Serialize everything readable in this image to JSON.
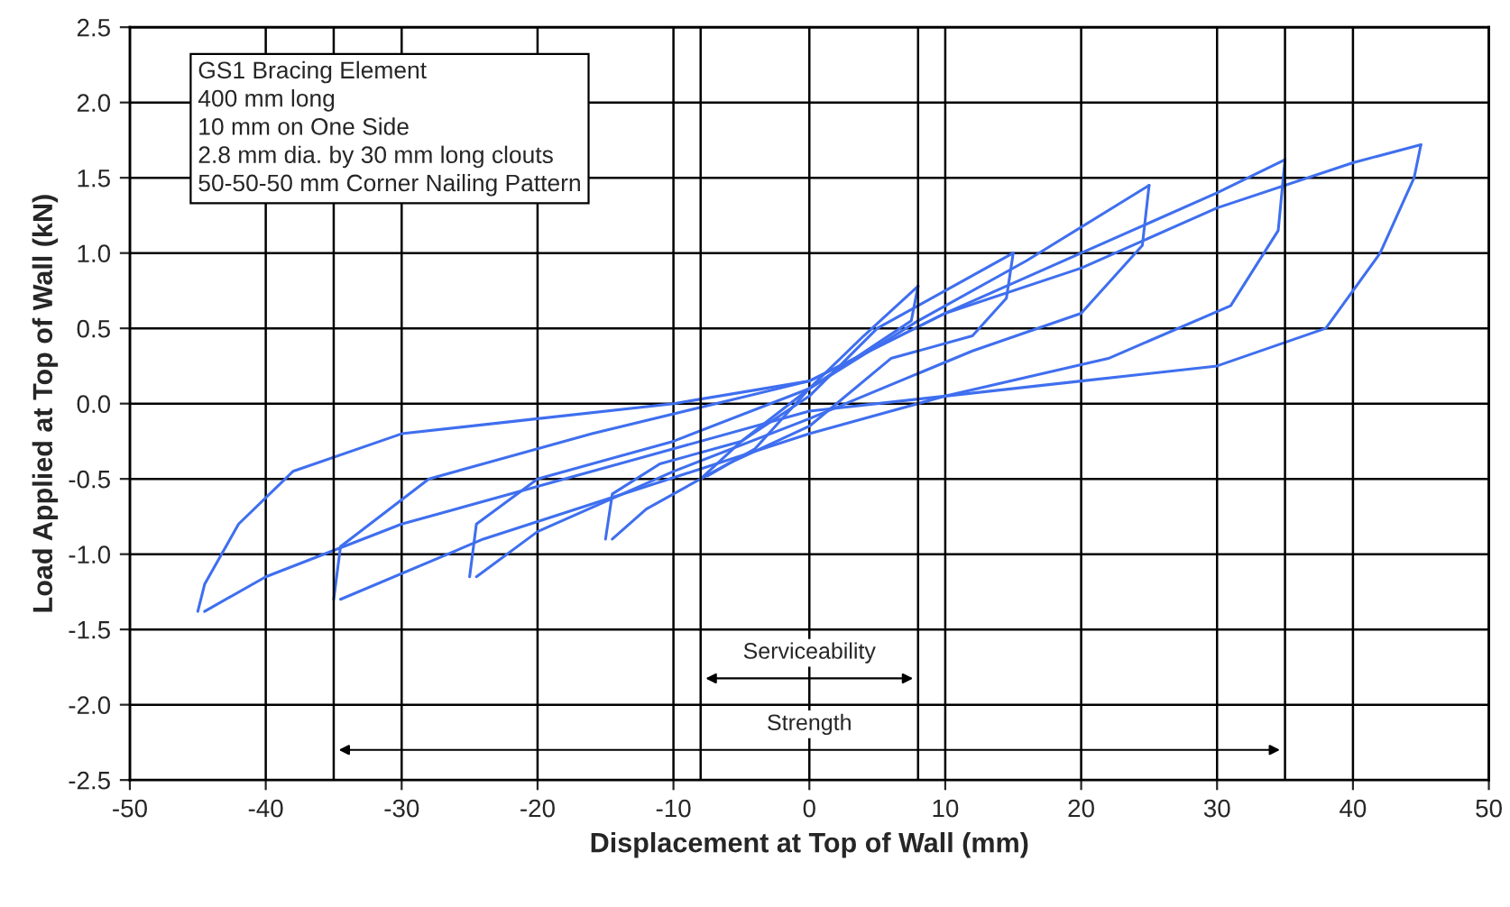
{
  "chart_data": {
    "type": "line",
    "xlabel": "Displacement at Top of Wall (mm)",
    "ylabel": "Load Applied at Top of Wall (kN)",
    "xlim": [
      -50,
      50
    ],
    "xticks": [
      -50,
      -40,
      -30,
      -20,
      -10,
      0,
      10,
      20,
      30,
      40,
      50
    ],
    "ylim": [
      -2.5,
      2.5
    ],
    "yticks": [
      -2.5,
      {
        "value": -2,
        "label": "-2.0"
      },
      -1.5,
      {
        "value": -1,
        "label": "-1.0"
      },
      -0.5,
      {
        "value": 0,
        "label": "0.0"
      },
      0.5,
      {
        "value": 1,
        "label": "1.0"
      },
      1.5,
      {
        "value": 2,
        "label": "2.0"
      },
      2.5
    ],
    "grid": true,
    "line_style": "solid",
    "series": [
      {
        "color": "#3f6fef",
        "x": [
          -8,
          -5,
          0,
          4,
          8
        ],
        "values": [
          -0.5,
          -0.25,
          0.1,
          0.45,
          0.78
        ]
      },
      {
        "color": "#3f6fef",
        "x": [
          8,
          7.5,
          5,
          0,
          -4,
          -7.5
        ],
        "values": [
          0.78,
          0.55,
          0.4,
          0.1,
          -0.3,
          -0.48
        ]
      },
      {
        "color": "#3f6fef",
        "x": [
          -15,
          -14.5,
          -11,
          -5,
          0,
          5,
          10,
          15
        ],
        "values": [
          -0.9,
          -0.6,
          -0.4,
          -0.25,
          0.05,
          0.5,
          0.75,
          1.0
        ]
      },
      {
        "color": "#3f6fef",
        "x": [
          15,
          14.5,
          12,
          6,
          0,
          -6,
          -12,
          -14.5
        ],
        "values": [
          1.0,
          0.7,
          0.45,
          0.3,
          -0.15,
          -0.4,
          -0.7,
          -0.9
        ]
      },
      {
        "color": "#3f6fef",
        "x": [
          -25,
          -24.5,
          -20,
          -10,
          0,
          8,
          16,
          25
        ],
        "values": [
          -1.15,
          -0.8,
          -0.5,
          -0.25,
          0.1,
          0.55,
          0.95,
          1.45
        ]
      },
      {
        "color": "#3f6fef",
        "x": [
          25,
          24.5,
          20,
          12,
          0,
          -10,
          -20,
          -24.5
        ],
        "values": [
          1.45,
          1.05,
          0.6,
          0.35,
          -0.1,
          -0.45,
          -0.85,
          -1.15
        ]
      },
      {
        "color": "#3f6fef",
        "x": [
          -35,
          -34.5,
          -28,
          -16,
          0,
          10,
          20,
          30,
          35
        ],
        "values": [
          -1.3,
          -0.95,
          -0.5,
          -0.2,
          0.15,
          0.6,
          1.0,
          1.4,
          1.62
        ]
      },
      {
        "color": "#3f6fef",
        "x": [
          35,
          34.5,
          31,
          22,
          10,
          0,
          -12,
          -24,
          -34.5
        ],
        "values": [
          1.62,
          1.15,
          0.65,
          0.3,
          0.05,
          -0.2,
          -0.55,
          -0.9,
          -1.3
        ]
      },
      {
        "color": "#3f6fef",
        "x": [
          -45,
          -44.5,
          -42,
          -38,
          -30,
          -20,
          -10,
          0,
          10,
          20,
          30,
          40,
          45
        ],
        "values": [
          -1.38,
          -1.2,
          -0.8,
          -0.45,
          -0.2,
          -0.1,
          0.0,
          0.15,
          0.6,
          0.9,
          1.3,
          1.6,
          1.72
        ]
      },
      {
        "color": "#3f6fef",
        "x": [
          45,
          44.5,
          42,
          38,
          30,
          20,
          0,
          -10,
          -20,
          -30,
          -40,
          -44.5
        ],
        "values": [
          1.72,
          1.5,
          1.0,
          0.5,
          0.25,
          0.15,
          -0.05,
          -0.3,
          -0.55,
          -0.8,
          -1.15,
          -1.38
        ]
      }
    ],
    "ref_lines": [
      {
        "axis": "x",
        "value": -35,
        "color": "#000000"
      },
      {
        "axis": "x",
        "value": -8,
        "color": "#000000"
      },
      {
        "axis": "x",
        "value": 8,
        "color": "#000000"
      },
      {
        "axis": "x",
        "value": 35,
        "color": "#000000"
      }
    ],
    "annotations": [
      "GS1 Bracing Element\n400 mm long\n10 mm on One Side\n2.8 mm dia. by 30 mm long clouts\n50-50-50 mm Corner Nailing Pattern",
      "Serviceability",
      "Strength"
    ]
  }
}
